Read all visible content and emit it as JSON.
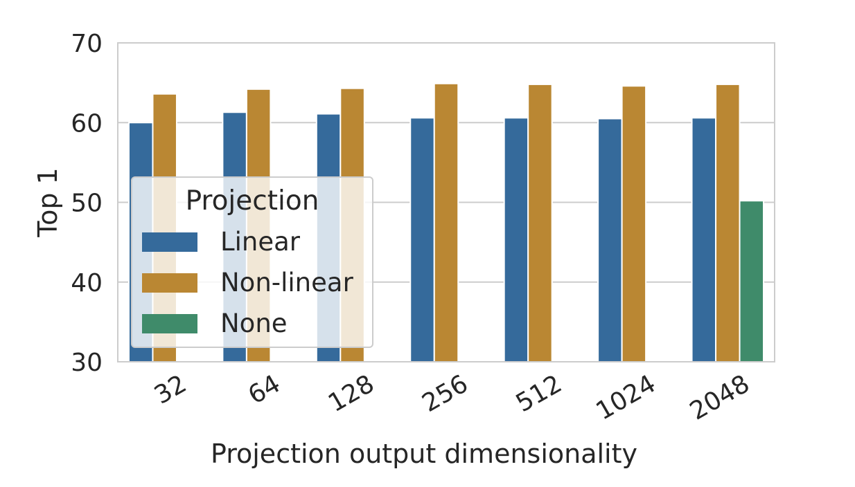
{
  "chart_data": {
    "type": "bar",
    "title": "",
    "xlabel": "Projection output dimensionality",
    "ylabel": "Top 1",
    "categories": [
      "32",
      "64",
      "128",
      "256",
      "512",
      "1024",
      "2048"
    ],
    "ylim": [
      30,
      70
    ],
    "yticks": [
      "30",
      "40",
      "50",
      "60",
      "70"
    ],
    "grid": true,
    "legend": {
      "title": "Projection",
      "placement": "center-left"
    },
    "series": [
      {
        "name": "Linear",
        "color": "#356a9b",
        "values": [
          60.0,
          61.3,
          61.1,
          60.6,
          60.6,
          60.5,
          60.6
        ]
      },
      {
        "name": "Non-linear",
        "color": "#ba8733",
        "values": [
          63.6,
          64.2,
          64.3,
          64.9,
          64.8,
          64.6,
          64.8
        ]
      },
      {
        "name": "None",
        "color": "#3f8b6a",
        "values": [
          null,
          null,
          null,
          null,
          null,
          null,
          50.2
        ]
      }
    ]
  }
}
